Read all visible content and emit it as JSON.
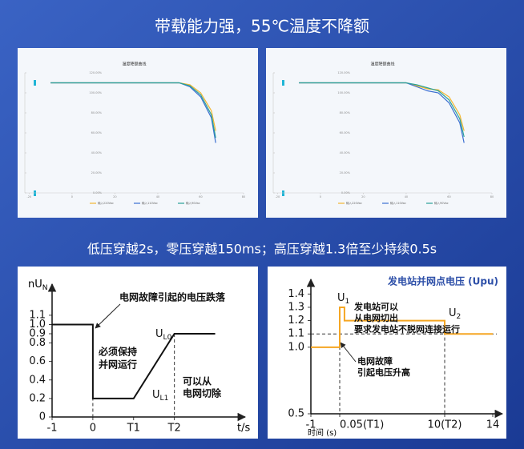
{
  "header": {
    "title": "带载能力强，55℃温度不降额"
  },
  "section": {
    "title": "低压穿越2s，零压穿越150ms；高压穿越1.3倍至少持续0.5s"
  },
  "chart_data": [
    {
      "type": "line",
      "title": "温度降额曲线",
      "x": [
        -10,
        0,
        10,
        20,
        30,
        40,
        50,
        55,
        60,
        65,
        67
      ],
      "series": [
        {
          "name": "输入220Vac",
          "color": "#f2b632",
          "values": [
            110,
            110,
            110,
            110,
            110,
            110,
            110,
            108,
            100,
            82,
            62
          ]
        },
        {
          "name": "输入110Vac",
          "color": "#3b6fd1",
          "values": [
            110,
            110,
            110,
            110,
            110,
            110,
            110,
            106,
            96,
            75,
            50
          ]
        },
        {
          "name": "输入90Vac",
          "color": "#2aa198",
          "values": [
            110,
            110,
            110,
            110,
            110,
            110,
            110,
            107,
            98,
            78,
            55
          ]
        }
      ],
      "xlim": [
        -22,
        80
      ],
      "ylim": [
        0,
        120
      ],
      "xticks": [
        -20,
        0,
        20,
        40,
        60,
        80
      ],
      "yticks": [
        {
          "value": 0,
          "label": "0.00%"
        },
        {
          "value": 20,
          "label": "20.00%"
        },
        {
          "value": 40,
          "label": "40.00%"
        },
        {
          "value": 60,
          "label": "60.00%"
        },
        {
          "value": 80,
          "label": "80.00%"
        },
        {
          "value": 100,
          "label": "100.00%"
        },
        {
          "value": 120,
          "label": "120.00%"
        }
      ]
    },
    {
      "type": "line",
      "title": "温度降额曲线",
      "x": [
        -10,
        0,
        10,
        20,
        30,
        40,
        45,
        50,
        55,
        60,
        65,
        67
      ],
      "series": [
        {
          "name": "输入220Vac",
          "color": "#f2b632",
          "values": [
            110,
            110,
            110,
            110,
            110,
            110,
            107,
            104,
            103,
            96,
            78,
            62
          ]
        },
        {
          "name": "输入110Vac",
          "color": "#3b6fd1",
          "values": [
            110,
            110,
            110,
            110,
            110,
            110,
            106,
            102,
            100,
            90,
            70,
            50
          ]
        },
        {
          "name": "输入90Vac",
          "color": "#2aa198",
          "values": [
            110,
            110,
            110,
            110,
            110,
            110,
            108,
            105,
            102,
            93,
            74,
            56
          ]
        }
      ],
      "xlim": [
        -22,
        80
      ],
      "ylim": [
        0,
        120
      ],
      "xticks": [
        -20,
        0,
        20,
        40,
        60,
        80
      ],
      "yticks": [
        {
          "value": 0,
          "label": "0.00%"
        },
        {
          "value": 20,
          "label": "20.00%"
        },
        {
          "value": 40,
          "label": "40.00%"
        },
        {
          "value": 60,
          "label": "60.00%"
        },
        {
          "value": 80,
          "label": "80.00%"
        },
        {
          "value": 100,
          "label": "100.00%"
        },
        {
          "value": 120,
          "label": "120.00%"
        }
      ]
    },
    {
      "type": "line",
      "y_label": {
        "text": "nU",
        "sub": "N"
      },
      "x_label": "t/s",
      "x": [
        -1,
        0,
        0,
        1,
        2,
        3
      ],
      "series": [
        {
          "color": "#111111",
          "values": [
            1,
            1,
            0.2,
            0.2,
            0.9,
            0.9
          ]
        }
      ],
      "xlim": [
        -1,
        3.5
      ],
      "ylim": [
        0,
        1.35
      ],
      "xticks": [
        -1,
        0,
        {
          "value": 1,
          "label": "T1"
        },
        {
          "value": 2,
          "label": "T2"
        }
      ],
      "yticks": [
        0,
        0.2,
        0.4,
        0.6,
        0.8,
        0.9,
        {
          "value": 1,
          "label": "1.0"
        },
        1.1
      ],
      "annotations": [
        "电网故障引起的电压跌落",
        "必须保持",
        "并网运行",
        "可以从",
        "电网切除"
      ],
      "markers": [
        {
          "text": "U",
          "sub": "L0"
        },
        {
          "text": "U",
          "sub": "L1"
        }
      ]
    },
    {
      "type": "line",
      "title": "发电站并网点电压 (Upu)",
      "x_label": "时间 (s)",
      "x": [
        -1,
        0.05,
        0.05,
        0.5,
        0.5,
        10,
        10,
        14
      ],
      "series": [
        {
          "color": "#f5a623",
          "values": [
            1,
            1,
            1.3,
            1.3,
            1.2,
            1.2,
            1.1,
            1.1
          ]
        }
      ],
      "xlim": [
        -1,
        14
      ],
      "ylim": [
        0.5,
        1.45
      ],
      "xticks": [
        -1,
        {
          "value": 0.05,
          "label": "0.05(T1)"
        },
        {
          "value": 10,
          "label": "10(T2)"
        },
        14
      ],
      "yticks": [
        0.5,
        {
          "value": 1,
          "label": "1.0"
        },
        1.1,
        1.2,
        1.3,
        1.4
      ],
      "annotations": [
        "发电站可以",
        "从电网切出",
        "要求发电站不脱网连接运行",
        "电网故障",
        "引起电压升高"
      ],
      "markers": [
        {
          "text": "U",
          "sub": "1"
        },
        {
          "text": "U",
          "sub": "2"
        }
      ]
    }
  ]
}
